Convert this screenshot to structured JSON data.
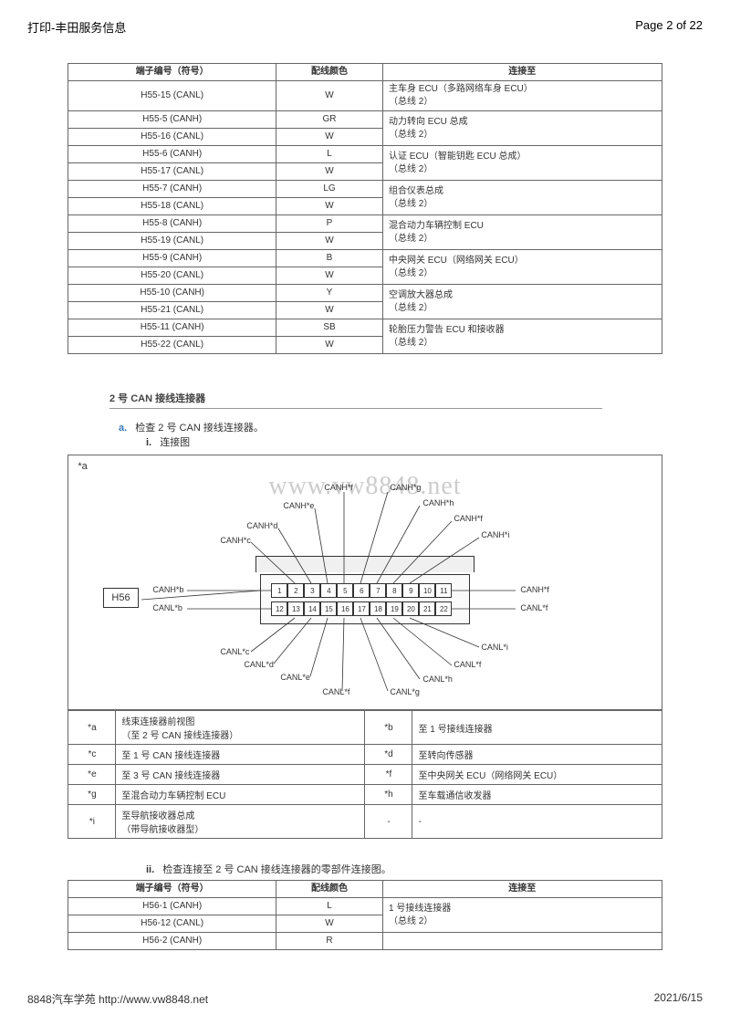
{
  "header": {
    "title": "打印-丰田服务信息",
    "page": "Page 2 of 22"
  },
  "table1": {
    "headers": [
      "端子编号（符号）",
      "配线颜色",
      "连接至"
    ],
    "groups": [
      {
        "rows": [
          [
            "H55-15 (CANL)",
            "W"
          ]
        ],
        "conn": [
          "主车身 ECU（多路网络车身 ECU）",
          "（总线 2）"
        ]
      },
      {
        "rows": [
          [
            "H55-5 (CANH)",
            "GR"
          ],
          [
            "H55-16 (CANL)",
            "W"
          ]
        ],
        "conn": [
          "动力转向 ECU 总成",
          "（总线 2）"
        ]
      },
      {
        "rows": [
          [
            "H55-6 (CANH)",
            "L"
          ],
          [
            "H55-17 (CANL)",
            "W"
          ]
        ],
        "conn": [
          "认证 ECU（智能钥匙 ECU 总成）",
          "（总线 2）"
        ]
      },
      {
        "rows": [
          [
            "H55-7 (CANH)",
            "LG"
          ],
          [
            "H55-18 (CANL)",
            "W"
          ]
        ],
        "conn": [
          "组合仪表总成",
          "（总线 2）"
        ]
      },
      {
        "rows": [
          [
            "H55-8 (CANH)",
            "P"
          ],
          [
            "H55-19 (CANL)",
            "W"
          ]
        ],
        "conn": [
          "混合动力车辆控制 ECU",
          "（总线 2）"
        ]
      },
      {
        "rows": [
          [
            "H55-9 (CANH)",
            "B"
          ],
          [
            "H55-20 (CANL)",
            "W"
          ]
        ],
        "conn": [
          "中央网关 ECU（网络网关 ECU）",
          "（总线 2）"
        ]
      },
      {
        "rows": [
          [
            "H55-10 (CANH)",
            "Y"
          ],
          [
            "H55-21 (CANL)",
            "W"
          ]
        ],
        "conn": [
          "空调放大器总成",
          "（总线 2）"
        ]
      },
      {
        "rows": [
          [
            "H55-11 (CANH)",
            "SB"
          ],
          [
            "H55-22 (CANL)",
            "W"
          ]
        ],
        "conn": [
          "轮胎压力警告 ECU 和接收器",
          "（总线 2）"
        ]
      }
    ]
  },
  "section2_title": "2 号 CAN 接线连接器",
  "step_a": "检查 2 号 CAN 接线连接器。",
  "step_i": "连接图",
  "diagram": {
    "tag": "*a",
    "watermark": "www.vw8848.net",
    "conn_id": "H56",
    "pins_top": [
      "1",
      "2",
      "3",
      "4",
      "5",
      "6",
      "7",
      "8",
      "9",
      "10",
      "11"
    ],
    "pins_bot": [
      "12",
      "13",
      "14",
      "15",
      "16",
      "17",
      "18",
      "19",
      "20",
      "21",
      "22"
    ],
    "labels_top": [
      "CANH*c",
      "CANH*d",
      "CANH*e",
      "CANH*f",
      "CANH*g",
      "CANH*h",
      "CANH*f",
      "CANH*i"
    ],
    "labels_left": [
      "CANH*b",
      "CANL*b"
    ],
    "labels_right": [
      "CANH*f",
      "CANL*f"
    ],
    "labels_bot": [
      "CANL*c",
      "CANL*d",
      "CANL*e",
      "CANL*f",
      "CANL*g",
      "CANL*h",
      "CANL*f",
      "CANL*i"
    ]
  },
  "legend": {
    "rows": [
      [
        "*a",
        "线束连接器前视图\n（至 2 号 CAN 接线连接器）",
        "*b",
        "至 1 号接线连接器"
      ],
      [
        "*c",
        "至 1 号 CAN 接线连接器",
        "*d",
        "至转向传感器"
      ],
      [
        "*e",
        "至 3 号 CAN 接线连接器",
        "*f",
        "至中央网关 ECU（网络网关 ECU）"
      ],
      [
        "*g",
        "至混合动力车辆控制 ECU",
        "*h",
        "至车载通信收发器"
      ],
      [
        "*i",
        "至导航接收器总成\n（带导航接收器型）",
        "-",
        "-"
      ]
    ]
  },
  "step_ii": "检查连接至 2 号 CAN 接线连接器的零部件连接图。",
  "table3": {
    "headers": [
      "端子编号（符号）",
      "配线颜色",
      "连接至"
    ],
    "groups": [
      {
        "rows": [
          [
            "H56-1 (CANH)",
            "L"
          ],
          [
            "H56-12 (CANL)",
            "W"
          ]
        ],
        "conn": [
          "1 号接线连接器",
          "（总线 2）"
        ]
      },
      {
        "rows": [
          [
            "H56-2 (CANH)",
            "R"
          ]
        ],
        "conn": [
          ""
        ]
      }
    ]
  },
  "footer": {
    "left": "8848汽车学苑  http://www.vw8848.net",
    "right": "2021/6/15"
  }
}
